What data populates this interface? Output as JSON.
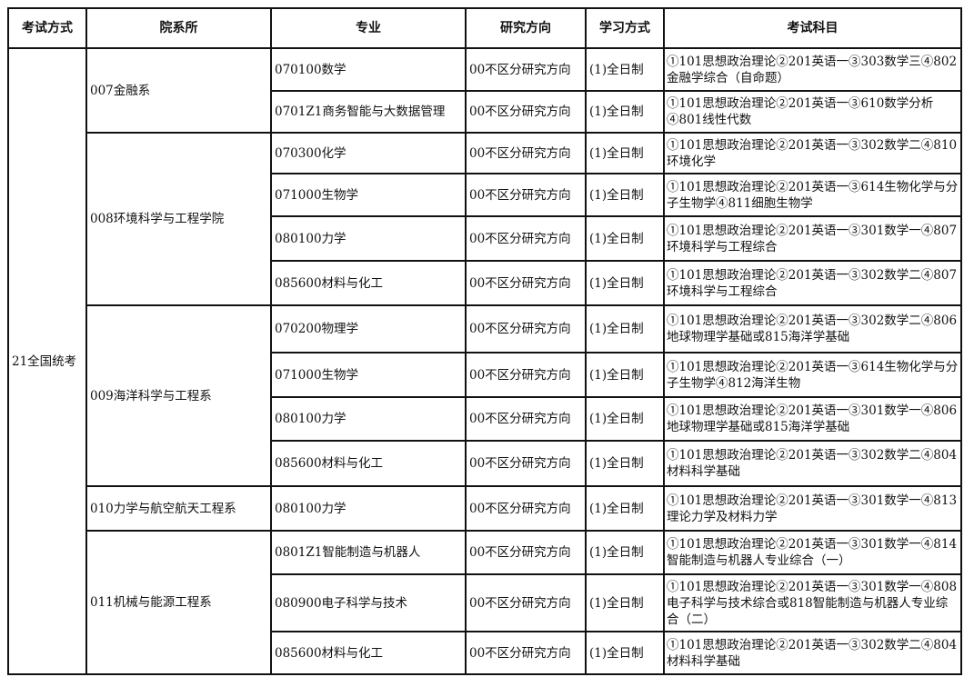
{
  "headers": [
    "考试方式",
    "院系所",
    "专业",
    "研究方向",
    "学习方式",
    "考试科目"
  ],
  "exam_mode": "21全国统考",
  "departments": [
    {
      "name": "007金融系",
      "majors": [
        {
          "major": "070100数学",
          "direction": "00不区分研究方向",
          "mode": "(1)全日制",
          "subjects": "①101思想政治理论②201英语一③303数学三④802金融学综合（自命题）"
        },
        {
          "major": "0701Z1商务智能与大数据管理",
          "direction": "00不区分研究方向",
          "mode": "(1)全日制",
          "subjects": "①101思想政治理论②201英语一③610数学分析④801线性代数"
        }
      ]
    },
    {
      "name": "008环境科学与工程学院",
      "majors": [
        {
          "major": "070300化学",
          "direction": "00不区分研究方向",
          "mode": "(1)全日制",
          "subjects": "①101思想政治理论②201英语一③302数学二④810环境化学"
        },
        {
          "major": "071000生物学",
          "direction": "00不区分研究方向",
          "mode": "(1)全日制",
          "subjects": "①101思想政治理论②201英语一③614生物化学与分子生物学④811细胞生物学"
        },
        {
          "major": "080100力学",
          "direction": "00不区分研究方向",
          "mode": "(1)全日制",
          "subjects": "①101思想政治理论②201英语一③301数学一④807环境科学与工程综合"
        },
        {
          "major": "085600材料与化工",
          "direction": "00不区分研究方向",
          "mode": "(1)全日制",
          "subjects": "①101思想政治理论②201英语一③302数学二④807环境科学与工程综合"
        }
      ]
    },
    {
      "name": "009海洋科学与工程系",
      "majors": [
        {
          "major": "070200物理学",
          "direction": "00不区分研究方向",
          "mode": "(1)全日制",
          "subjects": "①101思想政治理论②201英语一③302数学二④806地球物理学基础或815海洋学基础"
        },
        {
          "major": "071000生物学",
          "direction": "00不区分研究方向",
          "mode": "(1)全日制",
          "subjects": "①101思想政治理论②201英语一③614生物化学与分子生物学④812海洋生物"
        },
        {
          "major": "080100力学",
          "direction": "00不区分研究方向",
          "mode": "(1)全日制",
          "subjects": "①101思想政治理论②201英语一③301数学一④806地球物理学基础或815海洋学基础"
        },
        {
          "major": "085600材料与化工",
          "direction": "00不区分研究方向",
          "mode": "(1)全日制",
          "subjects": "①101思想政治理论②201英语一③302数学二④804材料科学基础"
        }
      ]
    },
    {
      "name": "010力学与航空航天工程系",
      "majors": [
        {
          "major": "080100力学",
          "direction": "00不区分研究方向",
          "mode": "(1)全日制",
          "subjects": "①101思想政治理论②201英语一③301数学一④813理论力学及材料力学"
        }
      ]
    },
    {
      "name": "011机械与能源工程系",
      "majors": [
        {
          "major": "0801Z1智能制造与机器人",
          "direction": "00不区分研究方向",
          "mode": "(1)全日制",
          "subjects": "①101思想政治理论②201英语一③301数学一④814智能制造与机器人专业综合（一）"
        },
        {
          "major": "080900电子科学与技术",
          "direction": "00不区分研究方向",
          "mode": "(1)全日制",
          "subjects": "①101思想政治理论②201英语一③301数学一④808电子科学与技术综合或818智能制造与机器人专业综合（二）"
        },
        {
          "major": "085600材料与化工",
          "direction": "00不区分研究方向",
          "mode": "(1)全日制",
          "subjects": "①101思想政治理论②201英语一③302数学二④804材料科学基础"
        }
      ]
    }
  ]
}
